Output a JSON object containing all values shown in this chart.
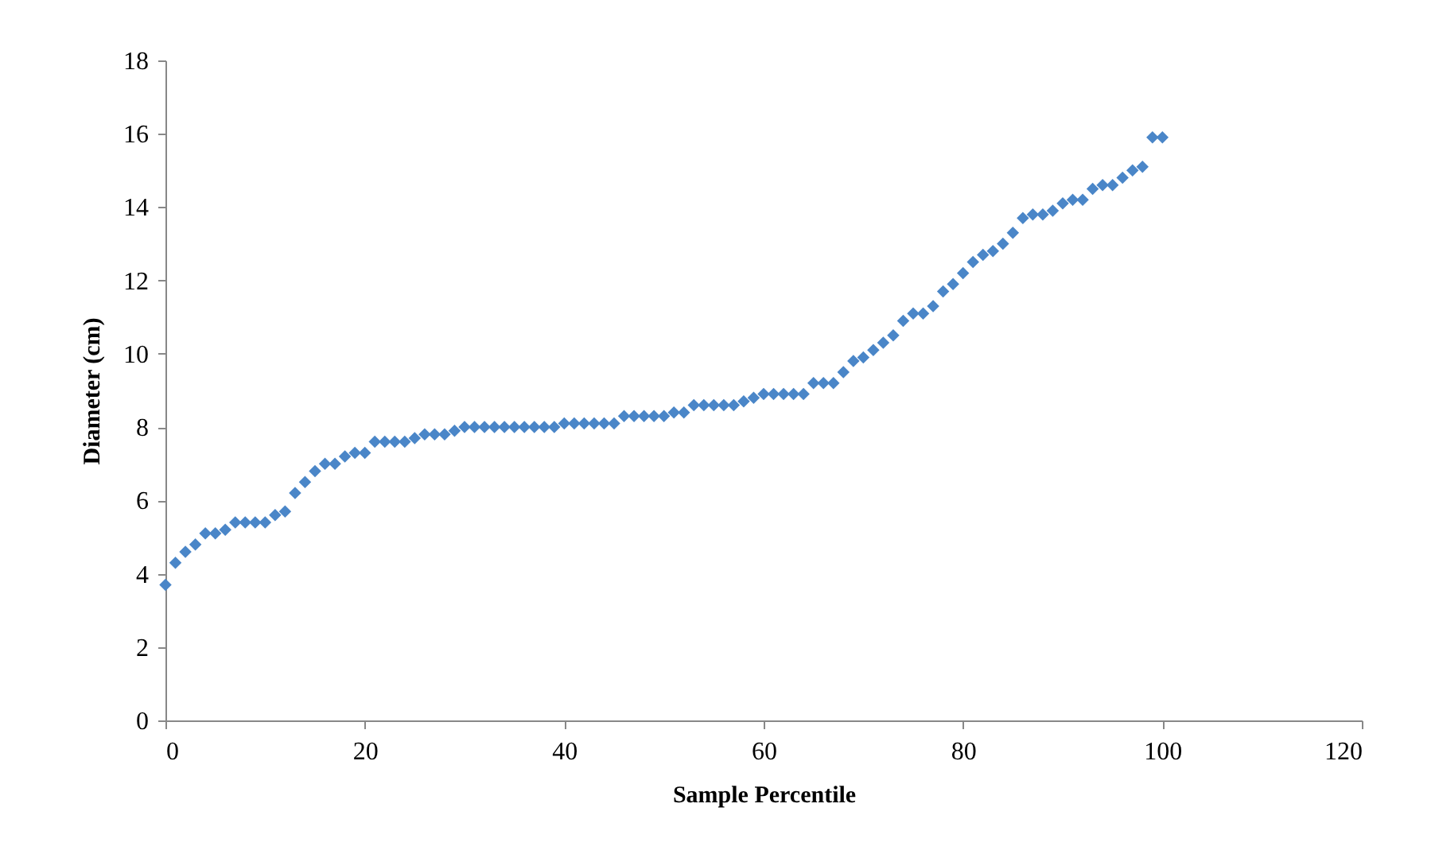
{
  "chart_data": {
    "type": "scatter",
    "xlabel": "Sample Percentile",
    "ylabel": "Diameter (cm)",
    "marker": "diamond",
    "grid": false,
    "xlim": [
      0,
      120
    ],
    "xticks": [
      0,
      20,
      40,
      60,
      80,
      100,
      120
    ],
    "ylim": [
      0,
      18
    ],
    "yticks": [
      0,
      2,
      4,
      6,
      8,
      10,
      12,
      14,
      16,
      18
    ],
    "x": [
      0,
      1,
      2,
      3,
      4,
      5,
      6,
      7,
      8,
      9,
      10,
      11,
      12,
      13,
      14,
      15,
      16,
      17,
      18,
      19,
      20,
      21,
      22,
      23,
      24,
      25,
      26,
      27,
      28,
      29,
      30,
      31,
      32,
      33,
      34,
      35,
      36,
      37,
      38,
      39,
      40,
      41,
      42,
      43,
      44,
      45,
      46,
      47,
      48,
      49,
      50,
      51,
      52,
      53,
      54,
      55,
      56,
      57,
      58,
      59,
      60,
      61,
      62,
      63,
      64,
      65,
      66,
      67,
      68,
      69,
      70,
      71,
      72,
      73,
      74,
      75,
      76,
      77,
      78,
      79,
      80,
      81,
      82,
      83,
      84,
      85,
      86,
      87,
      88,
      89,
      90,
      91,
      92,
      93,
      94,
      95,
      96,
      97,
      98,
      99,
      100
    ],
    "series": [
      {
        "color": "#4a86c8",
        "values": [
          3.7,
          4.3,
          4.6,
          4.8,
          5.1,
          5.1,
          5.2,
          5.4,
          5.4,
          5.4,
          5.4,
          5.6,
          5.7,
          6.2,
          6.5,
          6.8,
          7.0,
          7.0,
          7.2,
          7.3,
          7.3,
          7.6,
          7.6,
          7.6,
          7.6,
          7.7,
          7.8,
          7.8,
          7.8,
          7.9,
          8.0,
          8.0,
          8.0,
          8.0,
          8.0,
          8.0,
          8.0,
          8.0,
          8.0,
          8.0,
          8.1,
          8.1,
          8.1,
          8.1,
          8.1,
          8.1,
          8.3,
          8.3,
          8.3,
          8.3,
          8.3,
          8.4,
          8.4,
          8.6,
          8.6,
          8.6,
          8.6,
          8.6,
          8.7,
          8.8,
          8.9,
          8.9,
          8.9,
          8.9,
          8.9,
          9.2,
          9.2,
          9.2,
          9.5,
          9.8,
          9.9,
          10.1,
          10.3,
          10.5,
          10.9,
          11.1,
          11.1,
          11.3,
          11.7,
          11.9,
          12.2,
          12.5,
          12.7,
          12.8,
          13.0,
          13.3,
          13.7,
          13.8,
          13.8,
          13.9,
          14.1,
          14.2,
          14.2,
          14.5,
          14.6,
          14.6,
          14.8,
          15.0,
          15.1,
          15.9,
          15.9
        ]
      }
    ]
  }
}
